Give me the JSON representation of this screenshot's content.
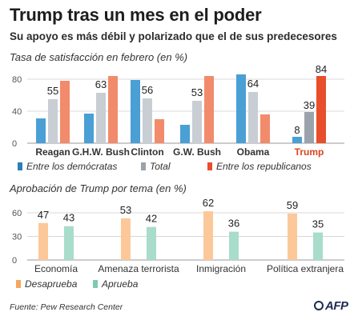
{
  "header": {
    "title": "Trump tras un mes en el poder",
    "subtitle": "Su apoyo es más débil y polarizado que el de sus predecesores"
  },
  "chart_data": [
    {
      "type": "bar",
      "title": "Tasa de satisfacción en febrero (en %)",
      "categories": [
        "Reagan",
        "G.H.W. Bush",
        "Clinton",
        "G.W. Bush",
        "Obama",
        "Trump"
      ],
      "series": [
        {
          "name": "Entre los demócratas",
          "values": [
            31,
            37,
            79,
            23,
            86,
            8
          ],
          "color": "#4a9fd5"
        },
        {
          "name": "Total",
          "values": [
            55,
            63,
            56,
            53,
            64,
            39
          ],
          "color": "#c8ced3",
          "highlight_color": "#9aa3ab"
        },
        {
          "name": "Entre los republicanos",
          "values": [
            78,
            84,
            30,
            84,
            36,
            84
          ],
          "color": "#f28b6b",
          "highlight_color": "#e84e2b"
        }
      ],
      "data_labels_series": "Total",
      "highlight_category": "Trump",
      "trump_labels": {
        "Entre los demócratas": "8",
        "Total": "39",
        "Entre los republicanos": "84"
      },
      "data_labels": [
        "55",
        "63",
        "56",
        "53",
        "64"
      ],
      "ylim": [
        0,
        90
      ],
      "yticks": [
        0,
        40,
        80
      ],
      "grid": true,
      "legend": "bottom"
    },
    {
      "type": "bar",
      "title": "Aprobación de Trump por tema (en %)",
      "categories": [
        "Economía",
        "Amenaza terrorista",
        "Inmigración",
        "Política extranjera"
      ],
      "series": [
        {
          "name": "Desaprueba",
          "values": [
            47,
            53,
            62,
            59
          ],
          "color": "#fcc89a"
        },
        {
          "name": "Aprueba",
          "values": [
            43,
            42,
            36,
            35
          ],
          "color": "#a8dccb"
        }
      ],
      "data_labels": [
        [
          "47",
          "53",
          "62",
          "59"
        ],
        [
          "43",
          "42",
          "36",
          "35"
        ]
      ],
      "ylim": [
        0,
        70
      ],
      "yticks": [
        0,
        30,
        60
      ],
      "grid": true,
      "legend": "bottom"
    }
  ],
  "footer": {
    "source": "Fuente: Pew Research Center",
    "logo": "AFP"
  }
}
